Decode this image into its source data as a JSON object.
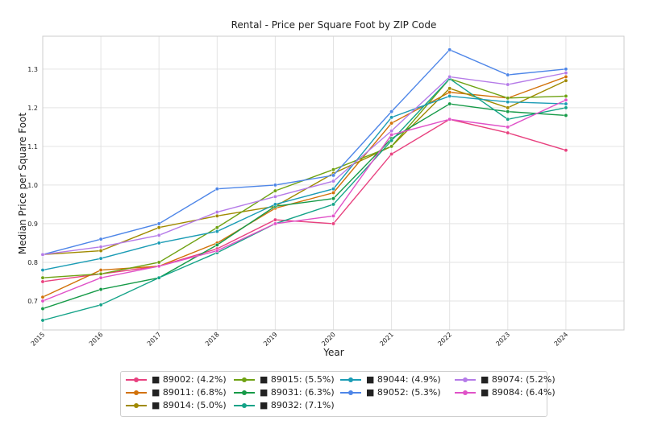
{
  "chart_data": {
    "type": "line",
    "title": "Rental - Price per Square Foot by ZIP Code",
    "xlabel": "Year",
    "ylabel": "Median Price per Square Foot",
    "x": [
      "2015",
      "2016",
      "2017",
      "2018",
      "2019",
      "2020",
      "2021",
      "2022",
      "2023",
      "2024"
    ],
    "xlim": [
      2015,
      2025
    ],
    "ylim": [
      0.625,
      1.385
    ],
    "yticks": [
      "0.7",
      "0.8",
      "0.9",
      "1.0",
      "1.1",
      "1.2",
      "1.3"
    ],
    "grid": true,
    "legend_position": "bottom-center",
    "series": [
      {
        "name": "89002: (4.2%)",
        "color": "#e8417f",
        "values": [
          0.75,
          0.77,
          0.79,
          0.835,
          0.91,
          0.9,
          1.08,
          1.17,
          1.135,
          1.09
        ]
      },
      {
        "name": "89011: (6.8%)",
        "color": "#d2720a",
        "values": [
          0.71,
          0.78,
          0.79,
          0.85,
          0.94,
          0.98,
          1.16,
          1.24,
          1.225,
          1.28
        ]
      },
      {
        "name": "89014: (5.0%)",
        "color": "#a08a00",
        "values": [
          0.82,
          0.83,
          0.89,
          0.92,
          0.945,
          1.03,
          1.1,
          1.25,
          1.2,
          1.27
        ]
      },
      {
        "name": "89015: (5.5%)",
        "color": "#6fa213",
        "values": [
          0.76,
          0.77,
          0.8,
          0.89,
          0.985,
          1.04,
          1.1,
          1.275,
          1.225,
          1.23
        ]
      },
      {
        "name": "89031: (6.3%)",
        "color": "#159a47",
        "values": [
          0.68,
          0.73,
          0.76,
          0.845,
          0.945,
          0.965,
          1.12,
          1.21,
          1.19,
          1.18
        ]
      },
      {
        "name": "89032: (7.1%)",
        "color": "#14a388",
        "values": [
          0.65,
          0.69,
          0.76,
          0.825,
          0.9,
          0.95,
          1.115,
          1.275,
          1.17,
          1.2
        ]
      },
      {
        "name": "89044: (4.9%)",
        "color": "#1b9cb5",
        "values": [
          0.78,
          0.81,
          0.85,
          0.88,
          0.95,
          0.99,
          1.175,
          1.23,
          1.215,
          1.21
        ]
      },
      {
        "name": "89052: (5.3%)",
        "color": "#4e86e8",
        "values": [
          0.82,
          0.86,
          0.9,
          0.99,
          1.0,
          1.025,
          1.19,
          1.35,
          1.285,
          1.3
        ]
      },
      {
        "name": "89074: (5.2%)",
        "color": "#b57be8",
        "values": [
          0.82,
          0.84,
          0.87,
          0.93,
          0.97,
          1.01,
          1.14,
          1.28,
          1.26,
          1.29
        ]
      },
      {
        "name": "89084: (6.4%)",
        "color": "#e052c8",
        "values": [
          0.7,
          0.76,
          0.79,
          0.83,
          0.9,
          0.92,
          1.13,
          1.17,
          1.15,
          1.22
        ]
      }
    ]
  }
}
